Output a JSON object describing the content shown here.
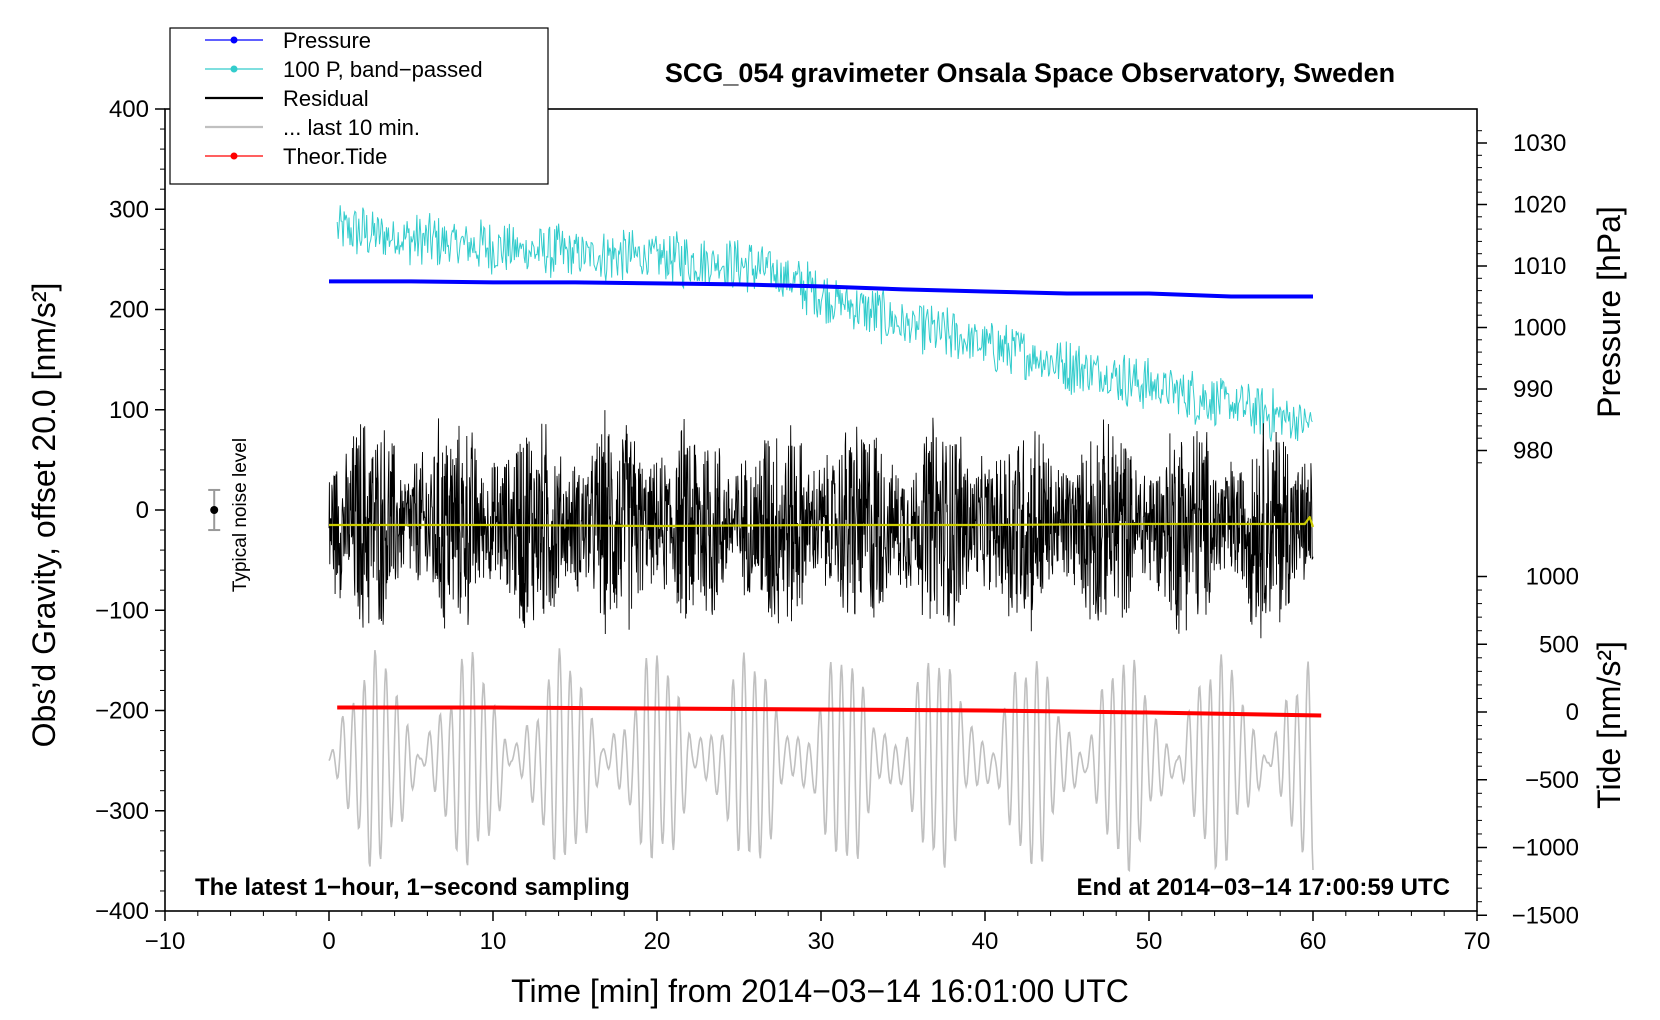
{
  "chart_data": {
    "type": "line",
    "title": "SCG_054 gravimeter Onsala Space Observatory, Sweden",
    "xlabel": "Time [min] from 2014−03−14 16:01:00 UTC",
    "ylabel_left": "Obs’d Gravity, offset 20.0 [nm/s²]",
    "ylabel_right_top": "Pressure [hPa]",
    "ylabel_right_bottom": "Tide [nm/s²]",
    "xlim": [
      -10,
      70
    ],
    "ylim_left": [
      -400,
      400
    ],
    "x_ticks": [
      -10,
      0,
      10,
      20,
      30,
      40,
      50,
      60,
      70
    ],
    "x_tick_labels": [
      "−10",
      "0",
      "10",
      "20",
      "30",
      "40",
      "50",
      "60",
      "70"
    ],
    "y_left_ticks": [
      400,
      300,
      200,
      100,
      0,
      -100,
      -200,
      -300,
      -400
    ],
    "y_left_tick_labels": [
      "400",
      "300",
      "200",
      "100",
      "0",
      "−100",
      "−200",
      "−300",
      "−400"
    ],
    "pressure_axis_ticks": [
      1030,
      1020,
      1010,
      1000,
      990,
      980
    ],
    "pressure_axis_labels": [
      "1030",
      "1020",
      "1010",
      "1000",
      "990",
      "980"
    ],
    "tide_axis_ticks": [
      1000,
      500,
      0,
      -500,
      -1000,
      -1500
    ],
    "tide_axis_labels": [
      "1000",
      "500",
      "0",
      "−500",
      "−1000",
      "−1500"
    ],
    "legend": [
      {
        "label": "Pressure",
        "color": "#0000ff",
        "marker": true
      },
      {
        "label": "100 P, band−passed",
        "color": "#33cccc",
        "marker": true
      },
      {
        "label": "Residual",
        "color": "#000000",
        "marker": false
      },
      {
        "label": "... last 10 min.",
        "color": "#c0c0c0",
        "marker": false
      },
      {
        "label": "Theor.Tide",
        "color": "#ff0000",
        "marker": true
      }
    ],
    "annotations": {
      "bottom_left": "The latest 1−hour, 1−second sampling",
      "bottom_right": "End at 2014−03−14 17:00:59 UTC",
      "noise_label": "Typical noise level"
    },
    "noise_bar": {
      "x": -7,
      "y": 0,
      "low": -20,
      "high": 20
    },
    "series": [
      {
        "name": "Pressure",
        "color": "#0000ff",
        "axis": "left",
        "x": [
          0,
          5,
          10,
          15,
          20,
          25,
          30,
          35,
          40,
          45,
          50,
          55,
          60
        ],
        "y": [
          228,
          228,
          227,
          227,
          226,
          225,
          223,
          220,
          218,
          216,
          216,
          213,
          213
        ]
      },
      {
        "name": "100 P, band-passed",
        "color": "#33cccc",
        "axis": "left",
        "style": "noisy",
        "trend_x": [
          0.5,
          5,
          10,
          15,
          20,
          25,
          27,
          30,
          35,
          40,
          45,
          50,
          55,
          60
        ],
        "trend_y": [
          280,
          270,
          262,
          255,
          252,
          245,
          238,
          215,
          185,
          165,
          145,
          125,
          105,
          85
        ],
        "amplitude": 30
      },
      {
        "name": "Residual",
        "color": "#000000",
        "axis": "left",
        "style": "noisy",
        "x_range": [
          0,
          60
        ],
        "baseline": -15,
        "amplitude": 130
      },
      {
        "name": "Residual mean",
        "color": "#cccc00",
        "axis": "left",
        "x": [
          0,
          10,
          20,
          30,
          40,
          50,
          59.5,
          59.8,
          60
        ],
        "y": [
          -15,
          -15,
          -16,
          -15,
          -15,
          -14,
          -14,
          -7,
          -17
        ]
      },
      {
        "name": "... last 10 min.",
        "color": "#c0c0c0",
        "axis": "left",
        "style": "oscillating",
        "x_range": [
          0,
          60
        ],
        "baseline": -250,
        "amplitude": 110
      },
      {
        "name": "Theor.Tide",
        "color": "#ff0000",
        "axis": "left",
        "x": [
          0.5,
          10,
          20,
          30,
          40,
          50,
          60.5
        ],
        "y": [
          -197,
          -197,
          -198,
          -199,
          -200,
          -202,
          -205
        ]
      }
    ]
  }
}
